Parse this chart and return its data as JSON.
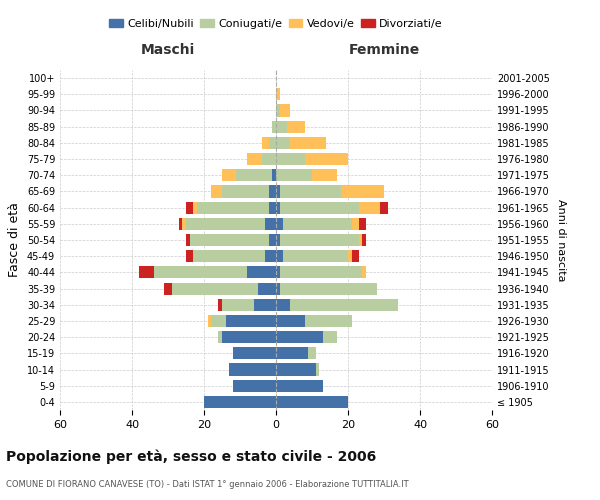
{
  "age_groups": [
    "100+",
    "95-99",
    "90-94",
    "85-89",
    "80-84",
    "75-79",
    "70-74",
    "65-69",
    "60-64",
    "55-59",
    "50-54",
    "45-49",
    "40-44",
    "35-39",
    "30-34",
    "25-29",
    "20-24",
    "15-19",
    "10-14",
    "5-9",
    "0-4"
  ],
  "birth_years": [
    "≤ 1905",
    "1906-1910",
    "1911-1915",
    "1916-1920",
    "1921-1925",
    "1926-1930",
    "1931-1935",
    "1936-1940",
    "1941-1945",
    "1946-1950",
    "1951-1955",
    "1956-1960",
    "1961-1965",
    "1966-1970",
    "1971-1975",
    "1976-1980",
    "1981-1985",
    "1986-1990",
    "1991-1995",
    "1996-2000",
    "2001-2005"
  ],
  "males": {
    "celibi": [
      0,
      0,
      0,
      0,
      0,
      0,
      1,
      2,
      2,
      3,
      2,
      3,
      8,
      5,
      6,
      14,
      15,
      12,
      13,
      12,
      20
    ],
    "coniugati": [
      0,
      0,
      0,
      1,
      2,
      4,
      10,
      13,
      20,
      22,
      22,
      20,
      26,
      24,
      9,
      4,
      1,
      0,
      0,
      0,
      0
    ],
    "vedovi": [
      0,
      0,
      0,
      0,
      2,
      4,
      4,
      3,
      1,
      1,
      0,
      0,
      0,
      0,
      0,
      1,
      0,
      0,
      0,
      0,
      0
    ],
    "divorziati": [
      0,
      0,
      0,
      0,
      0,
      0,
      0,
      0,
      2,
      1,
      1,
      2,
      4,
      2,
      1,
      0,
      0,
      0,
      0,
      0,
      0
    ]
  },
  "females": {
    "nubili": [
      0,
      0,
      0,
      0,
      0,
      0,
      0,
      1,
      1,
      2,
      1,
      2,
      1,
      1,
      4,
      8,
      13,
      9,
      11,
      13,
      20
    ],
    "coniugate": [
      0,
      0,
      1,
      3,
      4,
      8,
      10,
      17,
      22,
      19,
      22,
      18,
      23,
      27,
      30,
      13,
      4,
      2,
      1,
      0,
      0
    ],
    "vedove": [
      0,
      1,
      3,
      5,
      10,
      12,
      7,
      12,
      6,
      2,
      1,
      1,
      1,
      0,
      0,
      0,
      0,
      0,
      0,
      0,
      0
    ],
    "divorziate": [
      0,
      0,
      0,
      0,
      0,
      0,
      0,
      0,
      2,
      2,
      1,
      2,
      0,
      0,
      0,
      0,
      0,
      0,
      0,
      0,
      0
    ]
  },
  "colors": {
    "celibi": "#4472a8",
    "coniugati": "#b8cda0",
    "vedovi": "#ffc05a",
    "divorziati": "#cc2222"
  },
  "xlim": 60,
  "title": "Popolazione per età, sesso e stato civile - 2006",
  "subtitle": "COMUNE DI FIORANO CANAVESE (TO) - Dati ISTAT 1° gennaio 2006 - Elaborazione TUTTITALIA.IT",
  "ylabel": "Fasce di età",
  "ylabel_right": "Anni di nascita",
  "bg_color": "#ffffff",
  "grid_color": "#cccccc"
}
